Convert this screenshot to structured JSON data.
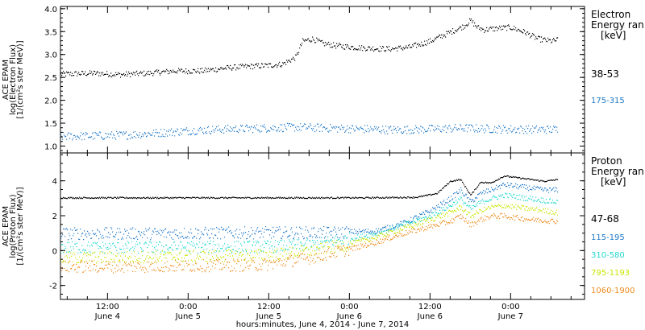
{
  "xlabel": "hours:minutes, June  4, 2014 - June  7, 2014",
  "x_ticks": [
    {
      "t": 12,
      "top": "12:00",
      "bottom": "June 4"
    },
    {
      "t": 24,
      "top": "0:00",
      "bottom": "June 5"
    },
    {
      "t": 36,
      "top": "12:00",
      "bottom": "June 5"
    },
    {
      "t": 48,
      "top": "0:00",
      "bottom": "June 6"
    },
    {
      "t": 60,
      "top": "12:00",
      "bottom": "June 6"
    },
    {
      "t": 72,
      "top": "0:00",
      "bottom": "June 7"
    }
  ],
  "chart_data": [
    {
      "type": "scatter",
      "panel": "electron",
      "ylabel_lines": [
        "ACE EPAM",
        "log(Electron Flux)",
        "[1/(cm²s ster MeV)]"
      ],
      "legend_title": [
        "Electron",
        "Energy ran",
        "[keV]"
      ],
      "xlim": [
        5,
        83
      ],
      "ylim": [
        0.85,
        4.05
      ],
      "yticks": [
        "1.0",
        "1.5",
        "2.0",
        "2.5",
        "3.0",
        "3.5",
        "4.0"
      ],
      "series": [
        {
          "name": "38-53",
          "color": "#000000",
          "points": [
            [
              5,
              2.58
            ],
            [
              10,
              2.6
            ],
            [
              14,
              2.57
            ],
            [
              18,
              2.6
            ],
            [
              22,
              2.65
            ],
            [
              26,
              2.65
            ],
            [
              30,
              2.72
            ],
            [
              33,
              2.75
            ],
            [
              36,
              2.77
            ],
            [
              38,
              2.8
            ],
            [
              40,
              2.95
            ],
            [
              41,
              3.3
            ],
            [
              42.5,
              3.35
            ],
            [
              44,
              3.25
            ],
            [
              46,
              3.2
            ],
            [
              50,
              3.15
            ],
            [
              54,
              3.13
            ],
            [
              57,
              3.17
            ],
            [
              60,
              3.3
            ],
            [
              63,
              3.5
            ],
            [
              65,
              3.63
            ],
            [
              66,
              3.75
            ],
            [
              67,
              3.6
            ],
            [
              68,
              3.55
            ],
            [
              70,
              3.58
            ],
            [
              72,
              3.6
            ],
            [
              74,
              3.5
            ],
            [
              76,
              3.35
            ],
            [
              78,
              3.3
            ],
            [
              79,
              3.33
            ]
          ]
        },
        {
          "name": "175-315",
          "color": "#1e78c8",
          "points": [
            [
              5,
              1.22
            ],
            [
              10,
              1.23
            ],
            [
              15,
              1.25
            ],
            [
              20,
              1.3
            ],
            [
              25,
              1.35
            ],
            [
              30,
              1.38
            ],
            [
              35,
              1.4
            ],
            [
              40,
              1.42
            ],
            [
              45,
              1.4
            ],
            [
              50,
              1.38
            ],
            [
              55,
              1.36
            ],
            [
              60,
              1.38
            ],
            [
              65,
              1.4
            ],
            [
              70,
              1.38
            ],
            [
              75,
              1.37
            ],
            [
              79,
              1.37
            ]
          ]
        }
      ]
    },
    {
      "type": "scatter",
      "panel": "proton",
      "ylabel_lines": [
        "ACE EPAM",
        "log(Proton Flux)",
        "[1/(cm²s ster MeV)]"
      ],
      "legend_title": [
        "Proton",
        "Energy ran",
        "[keV]"
      ],
      "xlim": [
        5,
        83
      ],
      "ylim": [
        -2.8,
        5.6
      ],
      "yticks": [
        "-2",
        "0",
        "2",
        "4"
      ],
      "series": [
        {
          "name": "47-68",
          "color": "#000000",
          "points": [
            [
              5,
              3.05
            ],
            [
              20,
              3.05
            ],
            [
              35,
              3.05
            ],
            [
              50,
              3.05
            ],
            [
              58,
              3.08
            ],
            [
              61,
              3.3
            ],
            [
              63,
              4.0
            ],
            [
              64.5,
              4.1
            ],
            [
              66,
              3.2
            ],
            [
              67.5,
              3.95
            ],
            [
              69,
              3.9
            ],
            [
              71,
              4.3
            ],
            [
              73,
              4.2
            ],
            [
              75,
              4.1
            ],
            [
              77,
              4.0
            ],
            [
              79,
              4.1
            ]
          ]
        },
        {
          "name": "115-195",
          "color": "#1e78c8",
          "points": [
            [
              5,
              1.0
            ],
            [
              15,
              1.0
            ],
            [
              25,
              1.02
            ],
            [
              35,
              1.05
            ],
            [
              45,
              1.05
            ],
            [
              52,
              1.15
            ],
            [
              56,
              1.6
            ],
            [
              60,
              2.3
            ],
            [
              63,
              3.0
            ],
            [
              64.5,
              3.5
            ],
            [
              66,
              2.8
            ],
            [
              67.5,
              3.3
            ],
            [
              69,
              3.5
            ],
            [
              71,
              3.8
            ],
            [
              73,
              3.7
            ],
            [
              75,
              3.6
            ],
            [
              77,
              3.5
            ],
            [
              79,
              3.5
            ]
          ]
        },
        {
          "name": "310-580",
          "color": "#22d8d0",
          "points": [
            [
              5,
              0.2
            ],
            [
              15,
              0.2
            ],
            [
              25,
              0.22
            ],
            [
              35,
              0.25
            ],
            [
              42,
              0.35
            ],
            [
              48,
              0.7
            ],
            [
              52,
              1.0
            ],
            [
              56,
              1.5
            ],
            [
              60,
              2.0
            ],
            [
              63,
              2.6
            ],
            [
              64.5,
              3.0
            ],
            [
              66,
              2.4
            ],
            [
              67.5,
              2.8
            ],
            [
              69,
              3.0
            ],
            [
              71,
              3.2
            ],
            [
              73,
              3.1
            ],
            [
              75,
              3.0
            ],
            [
              77,
              2.9
            ],
            [
              79,
              2.8
            ]
          ]
        },
        {
          "name": "795-1193",
          "color": "#c8e600",
          "points": [
            [
              5,
              -0.4
            ],
            [
              15,
              -0.35
            ],
            [
              25,
              -0.3
            ],
            [
              35,
              -0.25
            ],
            [
              42,
              0.0
            ],
            [
              48,
              0.4
            ],
            [
              52,
              0.8
            ],
            [
              56,
              1.3
            ],
            [
              60,
              1.8
            ],
            [
              63,
              2.2
            ],
            [
              64.5,
              2.5
            ],
            [
              66,
              2.0
            ],
            [
              67.5,
              2.3
            ],
            [
              69,
              2.5
            ],
            [
              71,
              2.6
            ],
            [
              73,
              2.5
            ],
            [
              75,
              2.4
            ],
            [
              77,
              2.3
            ],
            [
              79,
              2.2
            ]
          ]
        },
        {
          "name": "1060-1900",
          "color": "#f08c1e",
          "points": [
            [
              5,
              -0.9
            ],
            [
              15,
              -0.9
            ],
            [
              25,
              -0.85
            ],
            [
              35,
              -0.8
            ],
            [
              42,
              -0.4
            ],
            [
              48,
              0.1
            ],
            [
              52,
              0.5
            ],
            [
              56,
              1.0
            ],
            [
              60,
              1.4
            ],
            [
              63,
              1.7
            ],
            [
              64.5,
              2.0
            ],
            [
              66,
              1.5
            ],
            [
              67.5,
              1.8
            ],
            [
              69,
              2.0
            ],
            [
              71,
              2.0
            ],
            [
              73,
              1.9
            ],
            [
              75,
              1.8
            ],
            [
              77,
              1.75
            ],
            [
              79,
              1.7
            ]
          ]
        }
      ]
    }
  ]
}
